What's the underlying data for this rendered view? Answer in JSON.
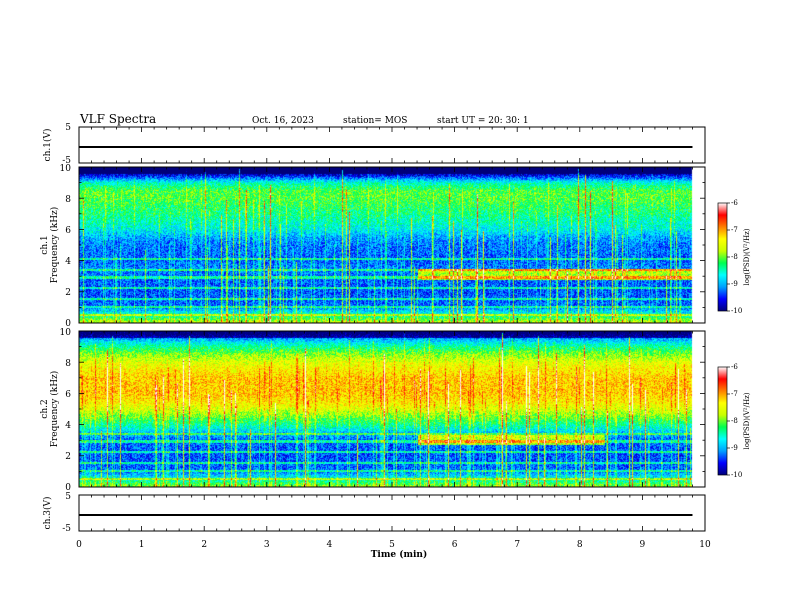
{
  "header": {
    "title": "VLF Spectra",
    "date": "Oct. 16, 2023",
    "station": "station= MOS",
    "start_ut": "start  UT =   20: 30: 1"
  },
  "panels": {
    "ch1_wave": {
      "ylabel": "ch.1(V)",
      "ticks": [
        "5",
        "-5"
      ]
    },
    "ch1_spec": {
      "ylabel_top": "ch.1",
      "ylabel": "Frequency (kHz)",
      "ticks": [
        "10",
        "8",
        "6",
        "4",
        "2",
        "0"
      ]
    },
    "ch2_spec": {
      "ylabel_top": "ch.2",
      "ylabel": "Frequency (kHz)",
      "ticks": [
        "10",
        "8",
        "6",
        "4",
        "2",
        "0"
      ]
    },
    "ch3_wave": {
      "ylabel": "ch.3(V)",
      "ticks": [
        "5",
        "-5"
      ]
    }
  },
  "xaxis": {
    "label": "Time (min)",
    "ticks": [
      "0",
      "1",
      "2",
      "3",
      "4",
      "5",
      "6",
      "7",
      "8",
      "9",
      "10"
    ]
  },
  "colorbar": {
    "label": "log(PSD)(V²/Hz)",
    "ticks": [
      "-6",
      "-7",
      "-8",
      "-9",
      "-10"
    ]
  },
  "colors": {
    "colormap": [
      "#00007a",
      "#0000ff",
      "#00a0ff",
      "#00ffff",
      "#00ff50",
      "#c8ff00",
      "#ffff00",
      "#ff8000",
      "#ff0000",
      "#ffffff"
    ]
  },
  "chart_data": [
    {
      "type": "line",
      "name": "ch.1 waveform",
      "xlabel": "Time (min)",
      "ylabel": "ch.1(V)",
      "xlim": [
        0,
        10
      ],
      "ylim": [
        -5,
        5
      ],
      "x": [
        0,
        9.8
      ],
      "y": [
        0,
        0
      ]
    },
    {
      "type": "heatmap",
      "name": "ch.1 spectrogram",
      "xlabel": "Time (min)",
      "ylabel": "Frequency (kHz)",
      "xlim": [
        0,
        10
      ],
      "ylim": [
        0,
        10
      ],
      "data_end_min": 9.8,
      "colorbar_range": [
        -10,
        -6
      ],
      "profile_f_khz": [
        0,
        0.5,
        1,
        2,
        3,
        3.5,
        4,
        5,
        5.5,
        6,
        7,
        8,
        8.5,
        9,
        9.5,
        10
      ],
      "profile_log_psd": [
        -7.6,
        -8.5,
        -9.3,
        -9.4,
        -9.3,
        -9.2,
        -9.3,
        -9.2,
        -9.0,
        -8.6,
        -8.2,
        -7.9,
        -7.9,
        -8.4,
        -9.6,
        -10
      ],
      "narrowband_lines_khz": [
        0.5,
        1.0,
        1.5,
        2.2,
        2.9,
        3.4,
        4.1
      ],
      "events": [
        {
          "t_start_min": 5.4,
          "t_end_min": 9.8,
          "f_khz": 3.1,
          "label": ""
        }
      ]
    },
    {
      "type": "heatmap",
      "name": "ch.2 spectrogram",
      "xlabel": "Time (min)",
      "ylabel": "Frequency (kHz)",
      "xlim": [
        0,
        10
      ],
      "ylim": [
        0,
        10
      ],
      "data_end_min": 9.8,
      "colorbar_range": [
        -10,
        -6
      ],
      "profile_f_khz": [
        0,
        0.5,
        1,
        2,
        3,
        3.5,
        4,
        5,
        5.5,
        6,
        7,
        8,
        8.5,
        9,
        9.5,
        10
      ],
      "profile_log_psd": [
        -7.8,
        -8.6,
        -9.3,
        -9.4,
        -9.3,
        -8.9,
        -8.3,
        -7.4,
        -7.1,
        -6.9,
        -6.9,
        -7.3,
        -7.7,
        -8.2,
        -8.9,
        -9.5
      ],
      "narrowband_lines_khz": [
        0.5,
        1.0,
        1.5,
        2.2,
        2.9,
        3.4
      ],
      "events": [
        {
          "t_start_min": 5.4,
          "t_end_min": 8.4,
          "f_khz": 3.0,
          "label": ""
        }
      ]
    },
    {
      "type": "line",
      "name": "ch.3 waveform",
      "xlabel": "Time (min)",
      "ylabel": "ch.3(V)",
      "xlim": [
        0,
        10
      ],
      "ylim": [
        -5,
        5
      ],
      "x": [
        0,
        9.8
      ],
      "y": [
        0,
        0
      ]
    }
  ]
}
